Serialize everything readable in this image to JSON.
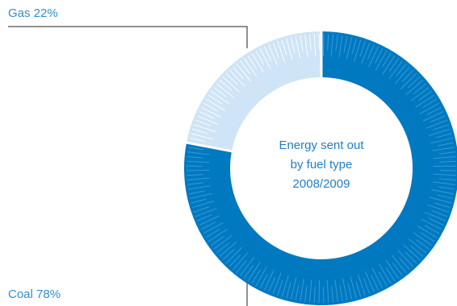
{
  "colors": {
    "coal": "#0079c1",
    "gas": "#cfe4f6",
    "tick_on_coal": "#4aa6dc",
    "tick_on_gas": "#ffffff",
    "label_text": "#2f8fd0",
    "center_text": "#1f7fc6",
    "leader_line": "#222222"
  },
  "chart_data": {
    "type": "pie",
    "variant": "donut",
    "title_lines": [
      "Energy sent out",
      "by fuel type",
      "2008/2009"
    ],
    "labels": [
      "Gas",
      "Coal"
    ],
    "values": [
      22,
      78
    ],
    "unit": "%",
    "legend_labels": [
      "Gas 22%",
      "Coal 78%"
    ],
    "legend_placement": "left"
  }
}
